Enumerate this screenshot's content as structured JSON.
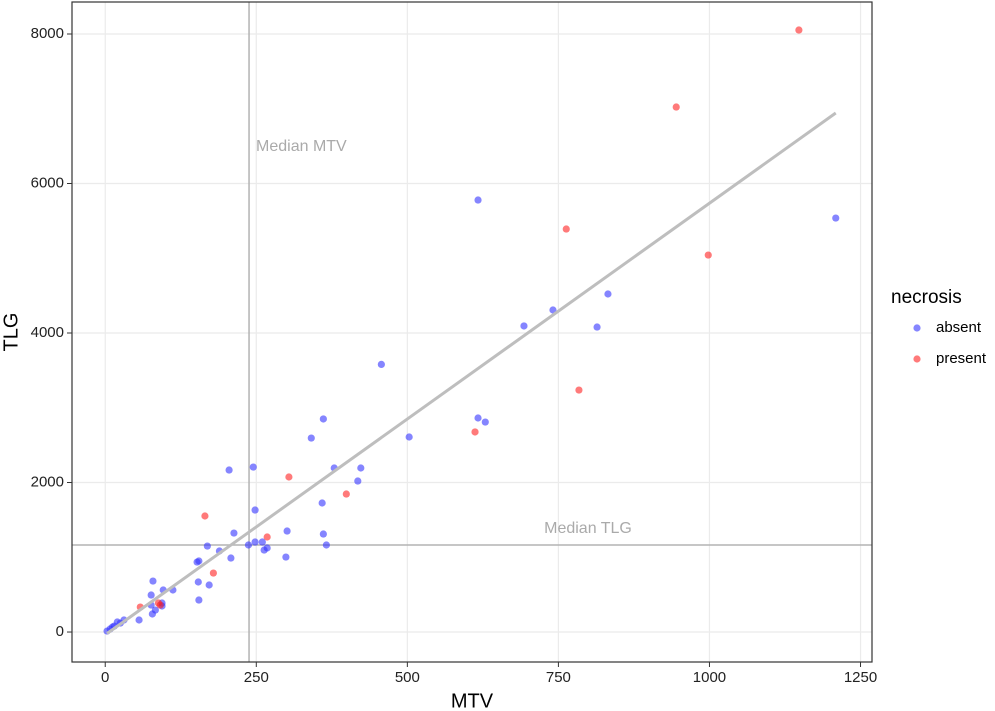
{
  "chart_data": {
    "type": "scatter",
    "x_label": "MTV",
    "y_label": "TLG",
    "legend_title": "necrosis",
    "legend_position": "right",
    "grid": true,
    "xlim": [
      -55,
      1269
    ],
    "ylim": [
      -401,
      8428
    ],
    "xticks": [
      0,
      250,
      500,
      750,
      1000,
      1250
    ],
    "yticks": [
      0,
      2000,
      4000,
      6000,
      8000
    ],
    "series": [
      {
        "name": "absent",
        "color": "#3333ff",
        "x": [
          617,
          1209,
          832,
          741,
          693,
          814,
          457,
          361,
          617,
          629,
          341,
          503,
          205,
          245,
          379,
          423,
          418,
          359,
          248,
          213,
          301,
          361,
          169,
          237,
          248,
          260,
          268,
          366,
          189,
          263,
          208,
          299,
          155,
          152,
          79,
          154,
          172,
          112,
          96,
          76,
          155,
          94,
          94,
          83,
          78,
          56,
          76,
          31,
          20,
          15,
          8,
          3,
          25,
          12
        ],
        "values": [
          5779,
          5538,
          4522,
          4308,
          4094,
          4080,
          3580,
          2850,
          2863,
          2809,
          2595,
          2609,
          2167,
          2207,
          2194,
          2194,
          2020,
          1726,
          1632,
          1324,
          1351,
          1311,
          1150,
          1164,
          1204,
          1204,
          1124,
          1164,
          1084,
          1097,
          990,
          1003,
          950,
          936,
          682,
          669,
          629,
          562,
          562,
          495,
          428,
          388,
          348,
          294,
          241,
          161,
          361,
          161,
          134,
          80,
          40,
          13,
          120,
          67
        ]
      },
      {
        "name": "present",
        "color": "#ff2222",
        "x": [
          1148,
          945,
          763,
          998,
          784,
          612,
          304,
          399,
          165,
          268,
          179,
          91,
          58,
          88
        ],
        "values": [
          8053,
          7023,
          5391,
          5043,
          3237,
          2676,
          2074,
          1846,
          1552,
          1271,
          789,
          361,
          334,
          388
        ]
      }
    ],
    "fit_line": {
      "color": "#bebebe",
      "x": [
        3,
        1209
      ],
      "values": [
        -20,
        6943
      ]
    },
    "reference_lines": [
      {
        "axis": "x",
        "value": 238,
        "label": "Median MTV",
        "color": "#b3b3b3"
      },
      {
        "axis": "y",
        "value": 1164,
        "label": "Median TLG",
        "color": "#b3b3b3"
      }
    ]
  }
}
